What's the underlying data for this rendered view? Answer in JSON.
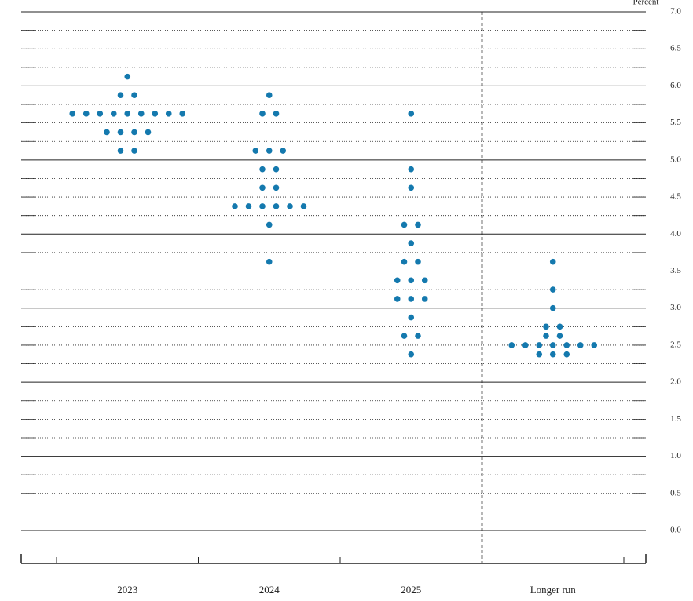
{
  "chart_data": {
    "type": "dot",
    "y_axis_label": "Percent",
    "categories": [
      "2023",
      "2024",
      "2025",
      "Longer run"
    ],
    "color": "#1479ae",
    "values": [
      [
        6.125,
        5.875,
        5.875,
        5.625,
        5.625,
        5.625,
        5.625,
        5.625,
        5.625,
        5.625,
        5.625,
        5.625,
        5.375,
        5.375,
        5.375,
        5.375,
        5.125,
        5.125
      ],
      [
        5.875,
        5.625,
        5.625,
        5.125,
        5.125,
        5.125,
        4.875,
        4.875,
        4.625,
        4.625,
        4.375,
        4.375,
        4.375,
        4.375,
        4.375,
        4.375,
        4.125,
        3.625
      ],
      [
        5.625,
        4.875,
        4.625,
        4.125,
        4.125,
        3.875,
        3.625,
        3.625,
        3.375,
        3.375,
        3.375,
        3.125,
        3.125,
        3.125,
        2.875,
        2.625,
        2.625,
        2.375
      ],
      [
        3.625,
        3.25,
        3.0,
        2.75,
        2.75,
        2.625,
        2.625,
        2.5,
        2.5,
        2.5,
        2.5,
        2.5,
        2.5,
        2.5,
        2.375,
        2.375,
        2.375
      ]
    ],
    "ylim": [
      0,
      7
    ],
    "yticks": [
      {
        "value": 0,
        "label": "0.0"
      },
      {
        "value": 0.5,
        "label": "0.5"
      },
      {
        "value": 1,
        "label": "1.0"
      },
      {
        "value": 1.5,
        "label": "1.5"
      },
      {
        "value": 2,
        "label": "2.0"
      },
      {
        "value": 2.5,
        "label": "2.5"
      },
      {
        "value": 3,
        "label": "3.0"
      },
      {
        "value": 3.5,
        "label": "3.5"
      },
      {
        "value": 4,
        "label": "4.0"
      },
      {
        "value": 4.5,
        "label": "4.5"
      },
      {
        "value": 5,
        "label": "5.0"
      },
      {
        "value": 5.5,
        "label": "5.5"
      },
      {
        "value": 6,
        "label": "6.0"
      },
      {
        "value": 6.5,
        "label": "6.5"
      },
      {
        "value": 7,
        "label": "7.0"
      }
    ],
    "grid": true
  }
}
